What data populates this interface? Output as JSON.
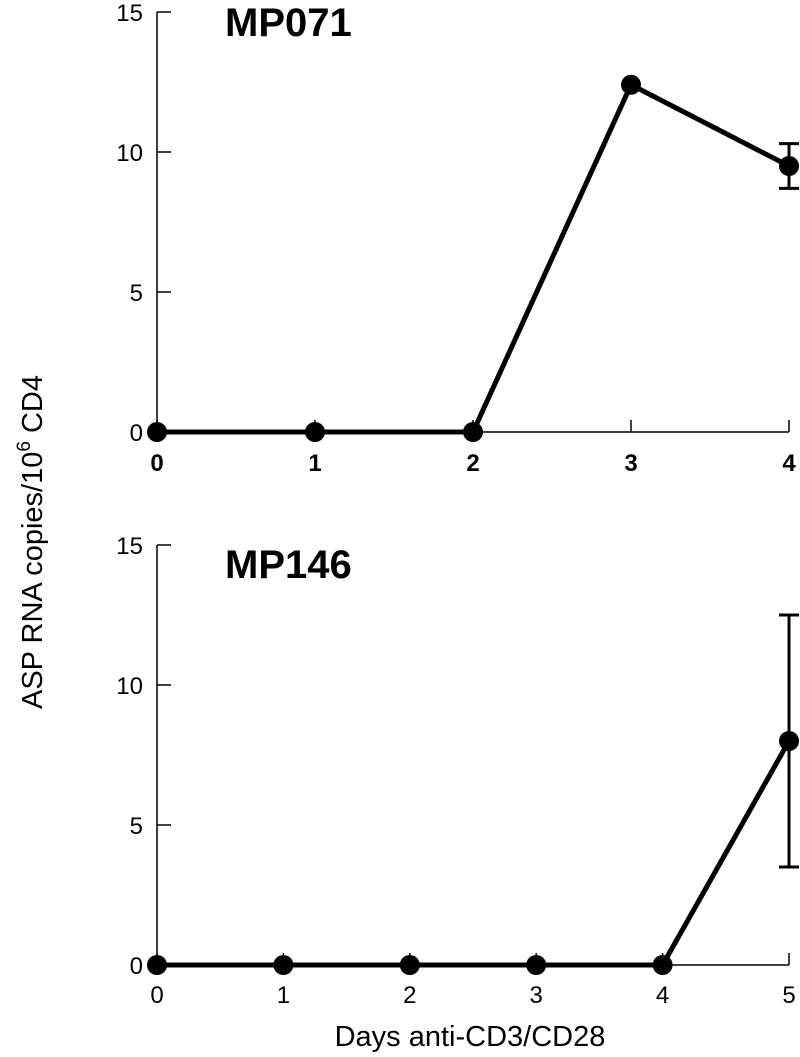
{
  "chart_data": [
    {
      "type": "line",
      "title": "MP071",
      "x": [
        0,
        1,
        2,
        3,
        4
      ],
      "x_tick_labels": [
        "0",
        "1",
        "2",
        "3",
        "4"
      ],
      "x_tick_style": "bold",
      "series": [
        {
          "values": [
            0,
            0,
            0,
            12.4,
            9.5
          ],
          "error": [
            null,
            null,
            null,
            null,
            0.8
          ]
        }
      ],
      "ylim": [
        0,
        15
      ],
      "xlim": [
        0,
        4
      ],
      "y_ticks": [
        0,
        5,
        10,
        15
      ],
      "y_tick_labels": [
        "0",
        "5",
        "10",
        "15"
      ],
      "grid": false,
      "color": "#000000"
    },
    {
      "type": "line",
      "title": "MP146",
      "x": [
        0,
        1,
        2,
        3,
        4,
        5
      ],
      "x_tick_labels": [
        "0",
        "1",
        "2",
        "3",
        "4",
        "5"
      ],
      "x_tick_style": "normal",
      "series": [
        {
          "values": [
            0,
            0,
            0,
            0,
            0,
            8
          ],
          "error": [
            null,
            null,
            null,
            null,
            null,
            4.5
          ]
        }
      ],
      "ylim": [
        0,
        15
      ],
      "xlim": [
        0,
        5
      ],
      "y_ticks": [
        0,
        5,
        10,
        15
      ],
      "y_tick_labels": [
        "0",
        "5",
        "10",
        "15"
      ],
      "grid": false,
      "color": "#000000"
    }
  ],
  "shared_labels": {
    "ylabel_main": "ASP RNA copies/10",
    "ylabel_sup": "6",
    "ylabel_tail": " CD4",
    "xlabel": "Days anti-CD3/CD28"
  }
}
